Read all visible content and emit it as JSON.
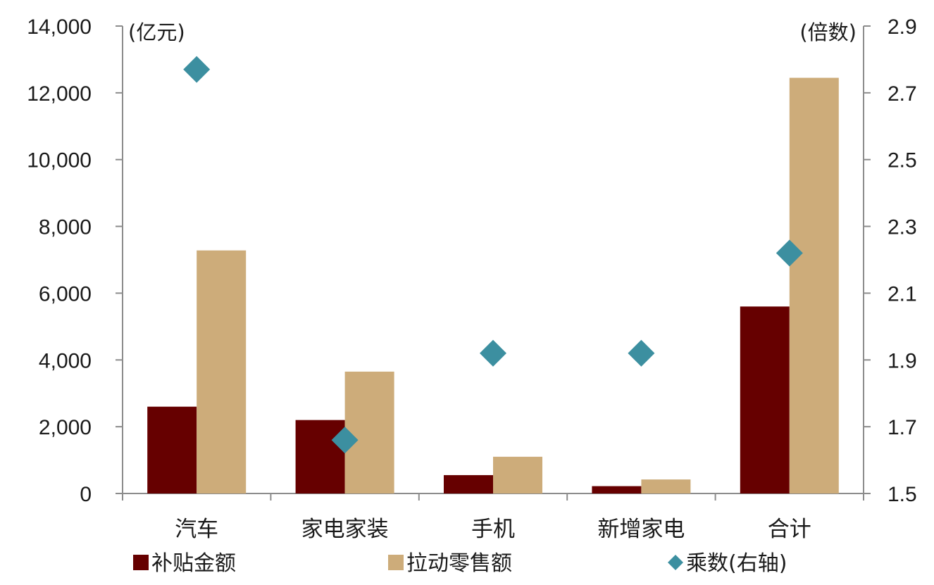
{
  "chart_data": {
    "type": "bar",
    "categories": [
      "汽车",
      "家电家装",
      "手机",
      "新增家电",
      "合计"
    ],
    "series": [
      {
        "name": "补贴金额",
        "kind": "bar",
        "axis": "left",
        "color": "#660000",
        "values": [
          2600,
          2200,
          550,
          220,
          5600
        ]
      },
      {
        "name": "拉动零售额",
        "kind": "bar",
        "axis": "left",
        "color": "#cdac7a",
        "values": [
          7280,
          3650,
          1100,
          420,
          12450
        ]
      },
      {
        "name": "乘数(右轴)",
        "kind": "scatter",
        "marker": "diamond",
        "axis": "right",
        "color": "#3c8fa0",
        "values": [
          2.77,
          1.66,
          1.92,
          1.92,
          2.22
        ]
      }
    ],
    "y_left": {
      "unit": "(亿元)",
      "min": 0,
      "max": 14000,
      "ticks": [
        0,
        2000,
        4000,
        6000,
        8000,
        10000,
        12000,
        14000
      ],
      "tick_labels": [
        "0",
        "2,000",
        "4,000",
        "6,000",
        "8,000",
        "10,000",
        "12,000",
        "14,000"
      ]
    },
    "y_right": {
      "unit": "(倍数)",
      "min": 1.5,
      "max": 2.9,
      "ticks": [
        1.5,
        1.7,
        1.9,
        2.1,
        2.3,
        2.5,
        2.7,
        2.9
      ],
      "tick_labels": [
        "1.5",
        "1.7",
        "1.9",
        "2.1",
        "2.3",
        "2.5",
        "2.7",
        "2.9"
      ]
    },
    "grid": false,
    "legend_position": "bottom"
  }
}
